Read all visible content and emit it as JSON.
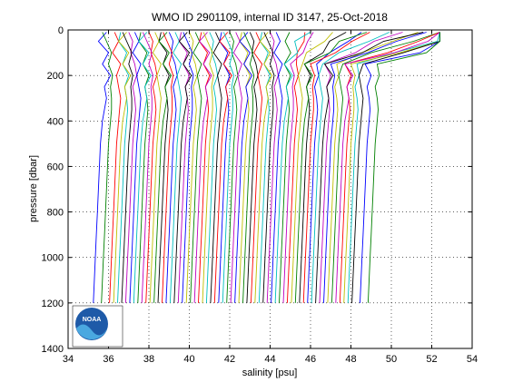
{
  "chart_data": {
    "type": "line",
    "title": "WMO ID 2901109, internal ID 3147, 25-Oct-2018",
    "xlabel": "salinity [psu]",
    "ylabel": "pressure [dbar]",
    "xlim": [
      34,
      54
    ],
    "ylim": [
      0,
      1400
    ],
    "y_reversed": true,
    "xticks": [
      "34",
      "36",
      "38",
      "40",
      "42",
      "44",
      "46",
      "48",
      "50",
      "52",
      "54"
    ],
    "yticks": [
      "0",
      "200",
      "400",
      "600",
      "800",
      "1000",
      "1200",
      "1400"
    ],
    "grid": true,
    "legend": "none",
    "profile_offset_psu": 0.2,
    "series_colors": [
      "#0000ff",
      "#008000",
      "#ff0000",
      "#00bfbf",
      "#bf00bf",
      "#bfbf00",
      "#000000"
    ],
    "pressure_levels": [
      10,
      50,
      100,
      150,
      200,
      250,
      300,
      350,
      400,
      500,
      600,
      700,
      800,
      900,
      1000,
      1100,
      1200
    ],
    "profiles": [
      {
        "salinity": [
          35.9,
          35.5,
          36.0,
          35.7,
          36.1,
          35.8,
          35.9,
          35.8,
          35.7,
          35.6,
          35.55,
          35.5,
          35.45,
          35.4,
          35.35,
          35.3,
          35.25
        ]
      },
      {
        "salinity": [
          35.5,
          35.7,
          35.95,
          35.8,
          36.0,
          35.9,
          35.95,
          35.95,
          35.9,
          35.8,
          35.75,
          35.7,
          35.65,
          35.6,
          35.55,
          35.5,
          35.45
        ]
      },
      {
        "salinity": [
          35.9,
          36.1,
          35.8,
          36.2,
          36.0,
          36.1,
          36.2,
          36.15,
          36.1,
          36.0,
          35.95,
          35.9,
          35.85,
          35.8,
          35.75,
          35.7,
          35.65
        ]
      },
      {
        "salinity": [
          36.0,
          35.9,
          36.3,
          36.1,
          36.4,
          36.2,
          36.3,
          36.35,
          36.3,
          36.2,
          36.15,
          36.1,
          36.05,
          36.0,
          35.95,
          35.9,
          35.85
        ]
      },
      {
        "salinity": [
          36.2,
          36.4,
          36.3,
          36.5,
          36.6,
          36.4,
          36.5,
          36.55,
          36.5,
          36.4,
          36.35,
          36.3,
          36.25,
          36.2,
          36.15,
          36.1,
          36.05
        ]
      }
    ]
  },
  "noaa_logo": {
    "text": "NOAA",
    "bg_color": "#1e5aa8",
    "fg_color": "#ffffff"
  }
}
